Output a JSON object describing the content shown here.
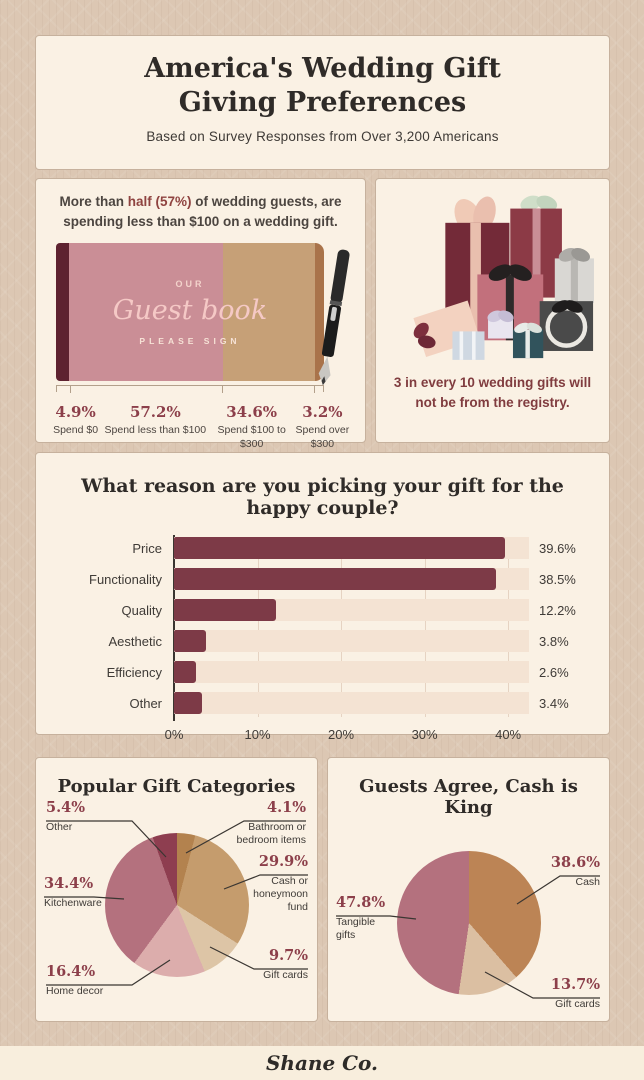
{
  "page": {
    "background": "#dcc7b3",
    "card_background": "#faf1e4",
    "accent_maroon": "#8c3f4a",
    "footer_logo": "Shane Co."
  },
  "header": {
    "title_line1": "America's Wedding Gift",
    "title_line2": "Giving Preferences",
    "subtitle": "Based on Survey Responses from Over 3,200 Americans"
  },
  "spending": {
    "headline_prefix": "More than ",
    "headline_highlight": "half (57%)",
    "headline_suffix": " of wedding guests, are spending less than $100 on a wedding gift.",
    "book": {
      "top_label": "OUR",
      "script_label": "Guest book",
      "bottom_label": "PLEASE SIGN"
    },
    "segments": [
      {
        "pct_label": "4.9%",
        "label": "Spend $0",
        "value": 4.9,
        "color": "#5e2230"
      },
      {
        "pct_label": "57.2%",
        "label": "Spend less than $100",
        "value": 57.2,
        "color": "#ca8e96"
      },
      {
        "pct_label": "34.6%",
        "label": "Spend $100 to $300",
        "value": 34.6,
        "color": "#c6a077"
      },
      {
        "pct_label": "3.2%",
        "label": "Spend over $300",
        "value": 3.2,
        "color": "#a9734a"
      }
    ]
  },
  "registry": {
    "text": "3 in every 10 wedding gifts will not be from the registry."
  },
  "chart_data": [
    {
      "type": "bar",
      "orientation": "horizontal",
      "title": "What reason are you picking your gift for the happy couple?",
      "categories": [
        "Price",
        "Functionality",
        "Quality",
        "Aesthetic",
        "Efficiency",
        "Other"
      ],
      "values": [
        39.6,
        38.5,
        12.2,
        3.8,
        2.6,
        3.4
      ],
      "value_labels": [
        "39.6%",
        "38.5%",
        "12.2%",
        "3.8%",
        "2.6%",
        "3.4%"
      ],
      "xlim": [
        0,
        42.5
      ],
      "x_ticks": [
        0,
        10,
        20,
        30,
        40
      ],
      "x_tick_labels": [
        "0%",
        "10%",
        "20%",
        "30%",
        "40%"
      ],
      "bar_color": "#7d3a47",
      "track_color": "#f4e3d3",
      "grid": true
    },
    {
      "type": "pie",
      "title": "Popular Gift Categories",
      "start_angle_deg": 0,
      "clockwise": true,
      "slices": [
        {
          "label": "Bathroom or bedroom items",
          "pct_label": "4.1%",
          "value": 4.1,
          "color": "#b3824e"
        },
        {
          "label": "Cash or honeymoon fund",
          "pct_label": "29.9%",
          "value": 29.9,
          "color": "#c59c6d"
        },
        {
          "label": "Gift cards",
          "pct_label": "9.7%",
          "value": 9.7,
          "color": "#ddc5a6"
        },
        {
          "label": "Home decor",
          "pct_label": "16.4%",
          "value": 16.4,
          "color": "#dcadac"
        },
        {
          "label": "Kitchenware",
          "pct_label": "34.4%",
          "value": 34.4,
          "color": "#b4717e"
        },
        {
          "label": "Other",
          "pct_label": "5.4%",
          "value": 5.4,
          "color": "#8e3e50"
        }
      ]
    },
    {
      "type": "pie",
      "title": "Guests Agree, Cash is King",
      "start_angle_deg": 0,
      "clockwise": true,
      "slices": [
        {
          "label": "Cash",
          "pct_label": "38.6%",
          "value": 38.6,
          "color": "#bc8455"
        },
        {
          "label": "Gift cards",
          "pct_label": "13.7%",
          "value": 13.7,
          "color": "#dbbfa2"
        },
        {
          "label": "Tangible gifts",
          "pct_label": "47.8%",
          "value": 47.8,
          "color": "#b4717e"
        }
      ]
    }
  ]
}
